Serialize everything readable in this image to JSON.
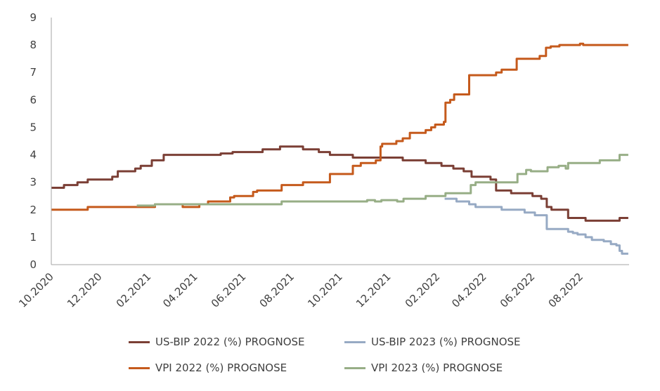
{
  "chart_data": {
    "type": "line",
    "title": "",
    "xlabel": "",
    "ylabel": "",
    "ylim": [
      0,
      9
    ],
    "xlim": [
      "2020-10-01",
      "2022-10-01"
    ],
    "yticks": [
      "0",
      "1",
      "2",
      "3",
      "4",
      "5",
      "6",
      "7",
      "8",
      "9"
    ],
    "xticks": [
      {
        "date": "2020-10-01",
        "label": "10.2020"
      },
      {
        "date": "2020-12-01",
        "label": "12.2020"
      },
      {
        "date": "2021-02-01",
        "label": "02.2021"
      },
      {
        "date": "2021-04-01",
        "label": "04.2021"
      },
      {
        "date": "2021-06-01",
        "label": "06.2021"
      },
      {
        "date": "2021-08-01",
        "label": "08.2021"
      },
      {
        "date": "2021-10-01",
        "label": "10.2021"
      },
      {
        "date": "2021-12-01",
        "label": "12.2021"
      },
      {
        "date": "2022-02-01",
        "label": "02.2022"
      },
      {
        "date": "2022-04-01",
        "label": "04.2022"
      },
      {
        "date": "2022-06-01",
        "label": "06.2022"
      },
      {
        "date": "2022-08-01",
        "label": "08.2022"
      }
    ],
    "grid": false,
    "legend_placement": "bottom",
    "line_style": "step",
    "series": [
      {
        "name": "US-BIP 2022 (%) PROGNOSE",
        "color": "#7b3f35",
        "points": [
          [
            "2020-10-01",
            2.8
          ],
          [
            "2020-10-17",
            2.9
          ],
          [
            "2020-11-03",
            3.0
          ],
          [
            "2020-11-16",
            3.1
          ],
          [
            "2020-12-17",
            3.2
          ],
          [
            "2020-12-24",
            3.4
          ],
          [
            "2021-01-15",
            3.5
          ],
          [
            "2021-01-22",
            3.6
          ],
          [
            "2021-02-05",
            3.8
          ],
          [
            "2021-02-20",
            4.0
          ],
          [
            "2021-05-03",
            4.05
          ],
          [
            "2021-05-18",
            4.1
          ],
          [
            "2021-06-25",
            4.2
          ],
          [
            "2021-07-17",
            4.3
          ],
          [
            "2021-08-15",
            4.2
          ],
          [
            "2021-09-04",
            4.1
          ],
          [
            "2021-09-18",
            4.0
          ],
          [
            "2021-10-17",
            3.9
          ],
          [
            "2021-12-19",
            3.8
          ],
          [
            "2022-01-17",
            3.7
          ],
          [
            "2022-02-06",
            3.6
          ],
          [
            "2022-02-21",
            3.5
          ],
          [
            "2022-03-06",
            3.4
          ],
          [
            "2022-03-16",
            3.2
          ],
          [
            "2022-04-09",
            3.1
          ],
          [
            "2022-04-16",
            2.7
          ],
          [
            "2022-05-05",
            2.6
          ],
          [
            "2022-06-01",
            2.5
          ],
          [
            "2022-06-12",
            2.4
          ],
          [
            "2022-06-19",
            2.1
          ],
          [
            "2022-06-25",
            2.0
          ],
          [
            "2022-07-16",
            1.7
          ],
          [
            "2022-08-07",
            1.6
          ],
          [
            "2022-09-19",
            1.7
          ],
          [
            "2022-09-30",
            1.7
          ]
        ]
      },
      {
        "name": "US-BIP 2023 (%) PROGNOSE",
        "color": "#97aac4",
        "points": [
          [
            "2022-02-10",
            2.4
          ],
          [
            "2022-02-25",
            2.3
          ],
          [
            "2022-03-13",
            2.2
          ],
          [
            "2022-03-21",
            2.1
          ],
          [
            "2022-04-23",
            2.0
          ],
          [
            "2022-05-22",
            1.9
          ],
          [
            "2022-06-04",
            1.8
          ],
          [
            "2022-06-19",
            1.3
          ],
          [
            "2022-07-16",
            1.2
          ],
          [
            "2022-07-22",
            1.15
          ],
          [
            "2022-07-28",
            1.1
          ],
          [
            "2022-08-07",
            1.0
          ],
          [
            "2022-08-15",
            0.9
          ],
          [
            "2022-08-30",
            0.85
          ],
          [
            "2022-09-08",
            0.75
          ],
          [
            "2022-09-15",
            0.7
          ],
          [
            "2022-09-19",
            0.5
          ],
          [
            "2022-09-22",
            0.4
          ],
          [
            "2022-09-30",
            0.4
          ]
        ]
      },
      {
        "name": "VPI 2022 (%) PROGNOSE",
        "color": "#c55a1c",
        "points": [
          [
            "2020-10-01",
            2.0
          ],
          [
            "2020-11-16",
            2.1
          ],
          [
            "2021-02-09",
            2.2
          ],
          [
            "2021-03-16",
            2.1
          ],
          [
            "2021-04-06",
            2.2
          ],
          [
            "2021-04-17",
            2.3
          ],
          [
            "2021-05-15",
            2.45
          ],
          [
            "2021-05-20",
            2.5
          ],
          [
            "2021-06-13",
            2.65
          ],
          [
            "2021-06-18",
            2.7
          ],
          [
            "2021-07-19",
            2.9
          ],
          [
            "2021-08-15",
            3.0
          ],
          [
            "2021-09-18",
            3.3
          ],
          [
            "2021-10-17",
            3.6
          ],
          [
            "2021-10-27",
            3.7
          ],
          [
            "2021-11-15",
            3.8
          ],
          [
            "2021-11-21",
            4.3
          ],
          [
            "2021-11-23",
            4.4
          ],
          [
            "2021-12-11",
            4.5
          ],
          [
            "2021-12-19",
            4.6
          ],
          [
            "2021-12-28",
            4.8
          ],
          [
            "2022-01-17",
            4.9
          ],
          [
            "2022-01-24",
            5.0
          ],
          [
            "2022-01-29",
            5.1
          ],
          [
            "2022-02-09",
            5.2
          ],
          [
            "2022-02-11",
            5.9
          ],
          [
            "2022-02-17",
            6.0
          ],
          [
            "2022-02-22",
            6.2
          ],
          [
            "2022-03-13",
            6.9
          ],
          [
            "2022-04-16",
            7.0
          ],
          [
            "2022-04-23",
            7.1
          ],
          [
            "2022-05-12",
            7.5
          ],
          [
            "2022-06-10",
            7.6
          ],
          [
            "2022-06-18",
            7.9
          ],
          [
            "2022-06-24",
            7.95
          ],
          [
            "2022-07-05",
            8.0
          ],
          [
            "2022-07-31",
            8.05
          ],
          [
            "2022-08-04",
            8.0
          ],
          [
            "2022-09-30",
            8.0
          ]
        ]
      },
      {
        "name": "VPI 2023 (%) PROGNOSE",
        "color": "#97ae86",
        "points": [
          [
            "2021-01-17",
            2.15
          ],
          [
            "2021-02-09",
            2.2
          ],
          [
            "2021-07-19",
            2.3
          ],
          [
            "2021-11-04",
            2.35
          ],
          [
            "2021-11-14",
            2.3
          ],
          [
            "2021-11-22",
            2.35
          ],
          [
            "2021-12-12",
            2.3
          ],
          [
            "2021-12-20",
            2.4
          ],
          [
            "2022-01-17",
            2.5
          ],
          [
            "2022-02-11",
            2.6
          ],
          [
            "2022-03-15",
            2.9
          ],
          [
            "2022-03-21",
            3.0
          ],
          [
            "2022-05-13",
            3.3
          ],
          [
            "2022-05-24",
            3.45
          ],
          [
            "2022-05-30",
            3.4
          ],
          [
            "2022-06-20",
            3.55
          ],
          [
            "2022-07-04",
            3.6
          ],
          [
            "2022-07-13",
            3.5
          ],
          [
            "2022-07-16",
            3.7
          ],
          [
            "2022-08-25",
            3.8
          ],
          [
            "2022-09-19",
            4.0
          ],
          [
            "2022-09-30",
            4.0
          ]
        ]
      }
    ]
  }
}
